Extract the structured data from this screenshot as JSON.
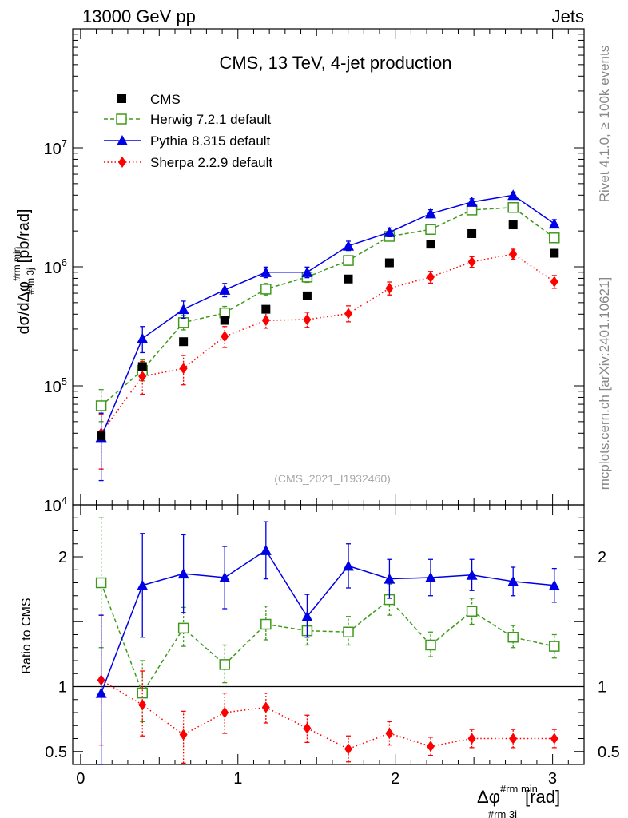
{
  "header": {
    "beam": "13000 GeV pp",
    "category": "Jets",
    "rivet_label": "Rivet 4.1.0, ≥ 100k events",
    "site_label": "mcplots.cern.ch [arXiv:2401.10621]",
    "analysis_id": "(CMS_2021_I1932460)"
  },
  "chart_data": [
    {
      "type": "scatter",
      "name": "main",
      "title": "CMS, 13 TeV, 4-jet production",
      "ylabel_main": "dσ/dΔφ",
      "ylabel_sup": "#rm min",
      "ylabel_sub": "#rm 3j",
      "ylabel_unit": "[pb/rad]",
      "yscale": "log",
      "ylim": [
        10000,
        100000000
      ],
      "xlim": [
        -0.05,
        3.2
      ],
      "yticks": [
        {
          "value": 10000,
          "base": "10",
          "exp": "4"
        },
        {
          "value": 100000,
          "base": "10",
          "exp": "5"
        },
        {
          "value": 1000000,
          "base": "10",
          "exp": "6"
        },
        {
          "value": 10000000,
          "base": "10",
          "exp": "7"
        }
      ],
      "x": [
        0.131,
        0.393,
        0.654,
        0.916,
        1.178,
        1.44,
        1.702,
        1.963,
        2.225,
        2.487,
        2.749,
        3.011
      ],
      "series": [
        {
          "name": "CMS",
          "label": "CMS",
          "color": "#000000",
          "marker": "square-filled",
          "line": "none",
          "values": [
            38000,
            145000,
            235000,
            355000,
            440000,
            570000,
            790000,
            1080000,
            1550000,
            1900000,
            2250000,
            1300000
          ],
          "err_low": [
            0,
            0,
            0,
            0,
            0,
            0,
            0,
            0,
            0,
            0,
            0,
            0
          ],
          "err_high": [
            0,
            0,
            0,
            0,
            0,
            0,
            0,
            0,
            0,
            0,
            0,
            0
          ]
        },
        {
          "name": "Herwig",
          "label": "Herwig 7.2.1 default",
          "color": "#3f9a1c",
          "marker": "square-open",
          "line": "dashed",
          "values": [
            68000,
            135000,
            340000,
            410000,
            650000,
            820000,
            1130000,
            1800000,
            2060000,
            3000000,
            3150000,
            1750000
          ],
          "err_low": [
            18000,
            25000,
            45000,
            50000,
            70000,
            80000,
            100000,
            140000,
            150000,
            220000,
            230000,
            150000
          ],
          "err_high": [
            25000,
            30000,
            50000,
            55000,
            75000,
            85000,
            110000,
            150000,
            160000,
            240000,
            240000,
            160000
          ]
        },
        {
          "name": "Pythia",
          "label": "Pythia 8.315 default",
          "color": "#0000e6",
          "marker": "triangle-filled",
          "line": "solid",
          "values": [
            37000,
            250000,
            440000,
            640000,
            900000,
            900000,
            1500000,
            1950000,
            2800000,
            3500000,
            4000000,
            2300000
          ],
          "err_low": [
            21000,
            60000,
            70000,
            80000,
            90000,
            90000,
            130000,
            160000,
            200000,
            220000,
            240000,
            180000
          ],
          "err_high": [
            22000,
            65000,
            75000,
            85000,
            95000,
            95000,
            140000,
            170000,
            210000,
            230000,
            250000,
            190000
          ]
        },
        {
          "name": "Sherpa",
          "label": "Sherpa 2.2.9 default",
          "color": "#ff0000",
          "marker": "diamond-filled",
          "line": "dotted",
          "values": [
            40000,
            120000,
            140000,
            260000,
            355000,
            360000,
            405000,
            660000,
            820000,
            1100000,
            1280000,
            750000
          ],
          "err_low": [
            20000,
            35000,
            38000,
            50000,
            50000,
            50000,
            60000,
            80000,
            90000,
            110000,
            120000,
            90000
          ],
          "err_high": [
            18000,
            40000,
            40000,
            55000,
            55000,
            55000,
            65000,
            85000,
            95000,
            115000,
            125000,
            95000
          ]
        }
      ]
    },
    {
      "type": "scatter",
      "name": "ratio",
      "ylabel": "Ratio to CMS",
      "ylim": [
        0.4,
        2.4
      ],
      "xlim": [
        -0.05,
        3.2
      ],
      "xlabel_main": "Δφ",
      "xlabel_sup": "#rm min",
      "xlabel_sub": "#rm 3j",
      "xlabel_unit": "[rad]",
      "yticks": [
        {
          "value": 0.5,
          "label": "0.5"
        },
        {
          "value": 1,
          "label": "1"
        },
        {
          "value": 2,
          "label": "2"
        }
      ],
      "xticks": [
        {
          "value": 0,
          "label": "0"
        },
        {
          "value": 1,
          "label": "1"
        },
        {
          "value": 2,
          "label": "2"
        },
        {
          "value": 3,
          "label": "3"
        }
      ],
      "reference_line": 1,
      "x": [
        0.131,
        0.393,
        0.654,
        0.916,
        1.178,
        1.44,
        1.702,
        1.963,
        2.225,
        2.487,
        2.749,
        3.011
      ],
      "series": [
        {
          "name": "Herwig",
          "color": "#3f9a1c",
          "marker": "square-open",
          "line": "dashed",
          "values": [
            1.8,
            0.95,
            1.45,
            1.17,
            1.48,
            1.43,
            1.42,
            1.67,
            1.32,
            1.58,
            1.38,
            1.31
          ],
          "err_low": [
            0.5,
            0.22,
            0.14,
            0.14,
            0.12,
            0.11,
            0.1,
            0.12,
            0.09,
            0.1,
            0.08,
            0.09
          ],
          "err_high": [
            0.5,
            0.25,
            0.16,
            0.15,
            0.14,
            0.12,
            0.12,
            0.12,
            0.1,
            0.1,
            0.09,
            0.09
          ]
        },
        {
          "name": "Pythia",
          "color": "#0000e6",
          "marker": "triangle-filled",
          "line": "solid",
          "values": [
            0.95,
            1.78,
            1.87,
            1.84,
            2.05,
            1.54,
            1.93,
            1.83,
            1.84,
            1.86,
            1.81,
            1.78
          ],
          "err_low": [
            0.6,
            0.4,
            0.3,
            0.24,
            0.22,
            0.16,
            0.17,
            0.15,
            0.14,
            0.12,
            0.11,
            0.13
          ],
          "err_high": [
            0.6,
            0.4,
            0.3,
            0.24,
            0.22,
            0.17,
            0.17,
            0.15,
            0.14,
            0.12,
            0.11,
            0.13
          ]
        },
        {
          "name": "Sherpa",
          "color": "#ff0000",
          "marker": "diamond-filled",
          "line": "dotted",
          "values": [
            1.05,
            0.86,
            0.63,
            0.8,
            0.84,
            0.68,
            0.52,
            0.64,
            0.54,
            0.6,
            0.6,
            0.6
          ],
          "err_low": [
            0.5,
            0.24,
            0.22,
            0.16,
            0.12,
            0.11,
            0.1,
            0.09,
            0.07,
            0.07,
            0.07,
            0.07
          ],
          "err_high": [
            0.5,
            0.26,
            0.18,
            0.15,
            0.11,
            0.1,
            0.1,
            0.09,
            0.07,
            0.07,
            0.07,
            0.07
          ]
        }
      ]
    }
  ]
}
